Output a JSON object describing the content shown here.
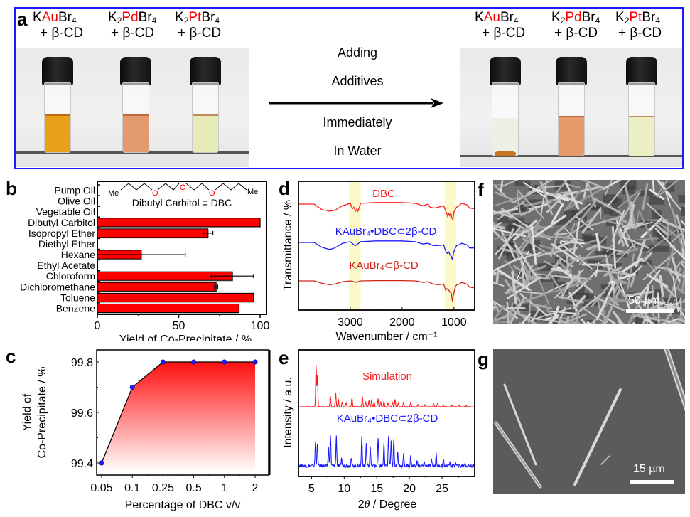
{
  "panels": {
    "a": {
      "letter": "a",
      "before": [
        {
          "prefix": "K",
          "metal": "Au",
          "suffix": "Br",
          "sub1": "",
          "sub2": "4",
          "line2": "+ β-CD",
          "liquid_color": "#e8a21a",
          "liquid_fill": 0.55
        },
        {
          "prefix": "K",
          "metal": "Pd",
          "suffix": "Br",
          "sub1": "2",
          "sub2": "4",
          "line2": "+ β-CD",
          "liquid_color": "#e39b6e",
          "liquid_fill": 0.55
        },
        {
          "prefix": "K",
          "metal": "Pt",
          "suffix": "Br",
          "sub1": "2",
          "sub2": "4",
          "line2": "+ β-CD",
          "liquid_color": "#e7ebb8",
          "liquid_fill": 0.55
        }
      ],
      "after": [
        {
          "prefix": "K",
          "metal": "Au",
          "suffix": "Br",
          "sub1": "",
          "sub2": "4",
          "line2": "+ β-CD",
          "liquid_color": "#eef0e6",
          "liquid_fill": 0.55,
          "sediment_color": "#c8741e"
        },
        {
          "prefix": "K",
          "metal": "Pd",
          "suffix": "Br",
          "sub1": "2",
          "sub2": "4",
          "line2": "+ β-CD",
          "liquid_color": "#e49a6a",
          "liquid_fill": 0.55
        },
        {
          "prefix": "K",
          "metal": "Pt",
          "suffix": "Br",
          "sub1": "2",
          "sub2": "4",
          "line2": "+ β-CD",
          "liquid_color": "#ecefc2",
          "liquid_fill": 0.55
        }
      ],
      "arrow_text_above": [
        "Adding",
        "Additives"
      ],
      "arrow_text_below": [
        "Immediately",
        "In Water"
      ],
      "frame_color": "#1a1aff",
      "metal_color": "#ff0000"
    },
    "f": {
      "letter": "f",
      "scale_bar": "50 µm"
    },
    "g": {
      "letter": "g",
      "scale_bar": "15 µm"
    }
  },
  "chart_data": [
    {
      "panel": "b",
      "type": "bar",
      "orientation": "horizontal",
      "categories": [
        "Pump Oil",
        "Olive Oil",
        "Vegetable Oil",
        "Dibutyl Carbitol",
        "Isopropyl Ether",
        "Diethyl Ether",
        "Hexane",
        "Ethyl Acetate",
        "Chloroform",
        "Dichloromethane",
        "Toluene",
        "Benzene"
      ],
      "values": [
        0,
        0,
        0,
        100,
        68,
        0,
        27,
        0,
        83,
        73,
        96,
        87
      ],
      "errors": [
        0,
        0,
        0,
        0,
        3,
        0,
        27,
        0,
        13,
        1,
        0,
        0
      ],
      "xlabel": "Yield of Co-Precipitate / %",
      "ylabel": "",
      "xlim": [
        0,
        100
      ],
      "xticks": [
        "0",
        "50",
        "100"
      ],
      "xtick_values": [
        0,
        50,
        100
      ],
      "bar_color": "#ff0000",
      "inset": {
        "structure_left": "Me",
        "structure_right": "Me",
        "oxygen_label": "O",
        "caption": "Dibutyl Carbitol ≡ DBC"
      },
      "grid": false
    },
    {
      "panel": "c",
      "type": "area",
      "categories": [
        "0.05",
        "0.1",
        "0.25",
        "0.5",
        "1",
        "2"
      ],
      "values": [
        99.4,
        99.7,
        99.8,
        99.8,
        99.8,
        99.8
      ],
      "xlabel": "Percentage of DBC v/v",
      "ylabel": "Yield of Co-Precipitate / %",
      "ylabel_lines": [
        "Yield of",
        "Co-Precipitate / %"
      ],
      "ylim": [
        99.35,
        99.85
      ],
      "yticks": [
        "99.4",
        "99.6",
        "99.8"
      ],
      "ytick_values": [
        99.4,
        99.6,
        99.8
      ],
      "fill_gradient": [
        "#ff1010",
        "#ffffff"
      ],
      "marker_color": "#2020ff",
      "grid": false
    },
    {
      "panel": "d",
      "type": "line",
      "title": "",
      "xlabel": "Wavenumber / cm⁻¹",
      "ylabel": "Transmittance / %",
      "xlim": [
        4000,
        600
      ],
      "xticks": [
        "3000",
        "2000",
        "1000"
      ],
      "xtick_values": [
        3000,
        2000,
        1000
      ],
      "highlight_bands": [
        [
          3020,
          2800
        ],
        [
          1180,
          960
        ]
      ],
      "highlight_color": "#fbf9c8",
      "series": [
        {
          "name": "DBC",
          "color": "#ff1a1a",
          "offset": 2,
          "points": [
            [
              4000,
              0
            ],
            [
              3700,
              0
            ],
            [
              3550,
              -0.35
            ],
            [
              3400,
              -0.45
            ],
            [
              3300,
              -0.4
            ],
            [
              3150,
              -0.1
            ],
            [
              3000,
              0.05
            ],
            [
              2960,
              -0.3
            ],
            [
              2930,
              -0.2
            ],
            [
              2900,
              -0.45
            ],
            [
              2870,
              -0.3
            ],
            [
              2850,
              -0.45
            ],
            [
              2800,
              0.05
            ],
            [
              2500,
              0.1
            ],
            [
              2000,
              0.1
            ],
            [
              1750,
              0.05
            ],
            [
              1650,
              -0.05
            ],
            [
              1600,
              -0.1
            ],
            [
              1500,
              0.0
            ],
            [
              1460,
              -0.2
            ],
            [
              1380,
              -0.25
            ],
            [
              1300,
              -0.2
            ],
            [
              1200,
              -0.1
            ],
            [
              1150,
              -0.5
            ],
            [
              1120,
              -0.8
            ],
            [
              1100,
              -0.6
            ],
            [
              1080,
              -0.75
            ],
            [
              1060,
              -0.55
            ],
            [
              1040,
              -0.9
            ],
            [
              1020,
              -1.0
            ],
            [
              1000,
              -0.5
            ],
            [
              950,
              -0.2
            ],
            [
              900,
              -0.1
            ],
            [
              850,
              0.05
            ],
            [
              800,
              0.0
            ],
            [
              750,
              -0.05
            ],
            [
              700,
              -0.25
            ],
            [
              600,
              -0.3
            ]
          ]
        },
        {
          "name": "KAuBr₄•DBC⊂2β-CD",
          "color": "#1a1aff",
          "offset": 1,
          "points": [
            [
              4000,
              0
            ],
            [
              3700,
              0
            ],
            [
              3550,
              -0.3
            ],
            [
              3400,
              -0.45
            ],
            [
              3300,
              -0.35
            ],
            [
              3150,
              -0.05
            ],
            [
              3000,
              0.05
            ],
            [
              2930,
              -0.15
            ],
            [
              2900,
              -0.2
            ],
            [
              2860,
              -0.1
            ],
            [
              2800,
              0.05
            ],
            [
              2500,
              0.1
            ],
            [
              2000,
              0.1
            ],
            [
              1750,
              0.05
            ],
            [
              1650,
              -0.05
            ],
            [
              1600,
              -0.1
            ],
            [
              1500,
              -0.05
            ],
            [
              1400,
              -0.2
            ],
            [
              1300,
              -0.2
            ],
            [
              1200,
              -0.15
            ],
            [
              1160,
              -0.55
            ],
            [
              1130,
              -0.7
            ],
            [
              1100,
              -0.6
            ],
            [
              1080,
              -0.75
            ],
            [
              1050,
              -0.9
            ],
            [
              1030,
              -1.1
            ],
            [
              1010,
              -0.7
            ],
            [
              980,
              -0.4
            ],
            [
              950,
              -0.2
            ],
            [
              900,
              -0.15
            ],
            [
              850,
              -0.05
            ],
            [
              800,
              -0.1
            ],
            [
              750,
              -0.15
            ],
            [
              700,
              -0.35
            ],
            [
              600,
              -0.35
            ]
          ]
        },
        {
          "name": "KAuBr₄⊂β-CD",
          "color": "#d0241a",
          "offset": 0,
          "points": [
            [
              4000,
              0
            ],
            [
              3700,
              0
            ],
            [
              3550,
              -0.15
            ],
            [
              3400,
              -0.25
            ],
            [
              3300,
              -0.2
            ],
            [
              3150,
              -0.05
            ],
            [
              3000,
              0.0
            ],
            [
              2930,
              -0.05
            ],
            [
              2900,
              -0.1
            ],
            [
              2800,
              0.0
            ],
            [
              2500,
              0.02
            ],
            [
              2000,
              0.02
            ],
            [
              1750,
              0.0
            ],
            [
              1650,
              -0.05
            ],
            [
              1600,
              -0.1
            ],
            [
              1500,
              -0.05
            ],
            [
              1400,
              -0.2
            ],
            [
              1300,
              -0.25
            ],
            [
              1200,
              -0.2
            ],
            [
              1160,
              -0.6
            ],
            [
              1130,
              -0.5
            ],
            [
              1100,
              -0.6
            ],
            [
              1080,
              -0.7
            ],
            [
              1050,
              -0.8
            ],
            [
              1030,
              -1.3
            ],
            [
              1010,
              -0.9
            ],
            [
              980,
              -0.45
            ],
            [
              950,
              -0.25
            ],
            [
              900,
              -0.2
            ],
            [
              850,
              -0.1
            ],
            [
              800,
              -0.15
            ],
            [
              750,
              -0.2
            ],
            [
              700,
              -0.4
            ],
            [
              600,
              -0.45
            ]
          ]
        }
      ],
      "grid": false
    },
    {
      "panel": "e",
      "type": "line",
      "xlabel": "2θ / Degree",
      "xlabel_parts": [
        "2",
        "θ",
        " / Degree"
      ],
      "ylabel": "Intensity / a.u.",
      "xlim": [
        3,
        30
      ],
      "xticks": [
        "5",
        "10",
        "15",
        "20",
        "25"
      ],
      "xtick_values": [
        5,
        10,
        15,
        20,
        25
      ],
      "series": [
        {
          "name": "Simulation",
          "color": "#ff1a1a",
          "offset": 1,
          "peaks": [
            [
              5.7,
              1.0
            ],
            [
              5.9,
              0.75
            ],
            [
              7.9,
              0.25
            ],
            [
              8.7,
              0.35
            ],
            [
              9.1,
              0.2
            ],
            [
              9.7,
              0.12
            ],
            [
              10.3,
              0.1
            ],
            [
              11.2,
              0.22
            ],
            [
              12.8,
              0.25
            ],
            [
              13.3,
              0.12
            ],
            [
              13.8,
              0.15
            ],
            [
              14.2,
              0.18
            ],
            [
              14.6,
              0.12
            ],
            [
              15.2,
              0.2
            ],
            [
              15.6,
              0.12
            ],
            [
              16.1,
              0.14
            ],
            [
              16.7,
              0.1
            ],
            [
              17.4,
              0.12
            ],
            [
              17.8,
              0.18
            ],
            [
              18.3,
              0.1
            ],
            [
              19.1,
              0.12
            ],
            [
              20.2,
              0.12
            ],
            [
              21.3,
              0.06
            ],
            [
              22.4,
              0.05
            ],
            [
              23.7,
              0.08
            ],
            [
              24.3,
              0.07
            ],
            [
              25.2,
              0.05
            ],
            [
              26.5,
              0.04
            ],
            [
              27.6,
              0.04
            ],
            [
              28.7,
              0.03
            ]
          ]
        },
        {
          "name": "KAuBr₄•DBC⊂2β-CD",
          "color": "#1a1aff",
          "offset": 0,
          "peaks": [
            [
              5.6,
              0.6
            ],
            [
              5.9,
              0.55
            ],
            [
              7.6,
              0.45
            ],
            [
              7.9,
              0.8
            ],
            [
              8.8,
              0.75
            ],
            [
              9.6,
              0.2
            ],
            [
              11.1,
              0.2
            ],
            [
              12.7,
              0.75
            ],
            [
              13.4,
              0.55
            ],
            [
              14.0,
              0.5
            ],
            [
              15.2,
              0.7
            ],
            [
              16.1,
              0.55
            ],
            [
              16.8,
              0.8
            ],
            [
              17.2,
              0.65
            ],
            [
              17.6,
              0.7
            ],
            [
              18.2,
              0.35
            ],
            [
              19.1,
              0.3
            ],
            [
              20.2,
              0.25
            ],
            [
              21.2,
              0.12
            ],
            [
              22.3,
              0.1
            ],
            [
              23.4,
              0.15
            ],
            [
              24.1,
              0.3
            ],
            [
              25.2,
              0.15
            ],
            [
              26.2,
              0.08
            ],
            [
              27.1,
              0.06
            ],
            [
              28.5,
              0.08
            ]
          ]
        }
      ],
      "grid": false
    }
  ],
  "panel_letters": {
    "b": "b",
    "c": "c",
    "d": "d",
    "e": "e"
  }
}
